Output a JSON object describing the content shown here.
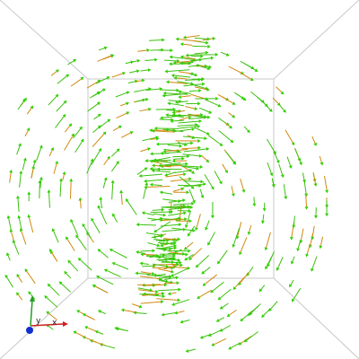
{
  "axes_triad": {
    "x_label": "x",
    "y_label": "y"
  }
}
